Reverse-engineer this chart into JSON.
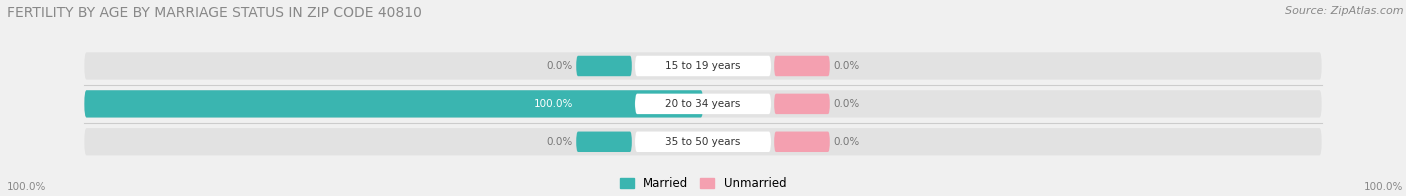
{
  "title": "FERTILITY BY AGE BY MARRIAGE STATUS IN ZIP CODE 40810",
  "source": "Source: ZipAtlas.com",
  "rows": [
    {
      "label": "15 to 19 years",
      "married": 0.0,
      "unmarried": 0.0
    },
    {
      "label": "20 to 34 years",
      "married": 100.0,
      "unmarried": 0.0
    },
    {
      "label": "35 to 50 years",
      "married": 0.0,
      "unmarried": 0.0
    }
  ],
  "married_color": "#3ab5b0",
  "unmarried_color": "#f4a0b0",
  "bg_color": "#f0f0f0",
  "bar_bg_color": "#e2e2e2",
  "title_fontsize": 10,
  "source_fontsize": 8,
  "legend_married": "Married",
  "legend_unmarried": "Unmarried",
  "bottom_left_label": "100.0%",
  "bottom_right_label": "100.0%"
}
